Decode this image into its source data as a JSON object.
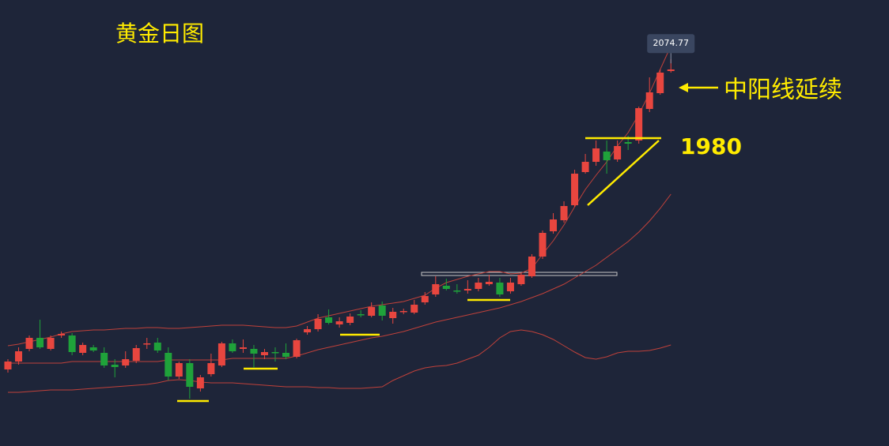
{
  "chart_data": {
    "type": "candlestick",
    "title": "黄金日图",
    "ylim": [
      1590,
      2155
    ],
    "up_color": "#e8463f",
    "down_color": "#1fa23a",
    "open": [
      1687,
      1697,
      1713,
      1727,
      1713,
      1730,
      1730,
      1708,
      1715,
      1708,
      1693,
      1692,
      1698,
      1719,
      1721,
      1708,
      1678,
      1695,
      1663,
      1681,
      1692,
      1720,
      1713,
      1713,
      1705,
      1709,
      1708,
      1703,
      1734,
      1738,
      1753,
      1744,
      1746,
      1757,
      1755,
      1768,
      1752,
      1760,
      1759,
      1772,
      1782,
      1793,
      1787,
      1787,
      1789,
      1795,
      1797,
      1786,
      1795,
      1805,
      1830,
      1862,
      1876,
      1895,
      1937,
      1950,
      1963,
      1953,
      1975,
      1977,
      2017,
      2037,
      2065
    ],
    "high": [
      1700,
      1715,
      1730,
      1750,
      1730,
      1735,
      1733,
      1721,
      1718,
      1715,
      1700,
      1710,
      1718,
      1727,
      1727,
      1715,
      1697,
      1700,
      1680,
      1707,
      1722,
      1725,
      1725,
      1718,
      1713,
      1715,
      1720,
      1726,
      1742,
      1757,
      1763,
      1753,
      1758,
      1762,
      1772,
      1773,
      1765,
      1764,
      1775,
      1785,
      1805,
      1802,
      1795,
      1800,
      1803,
      1807,
      1803,
      1803,
      1809,
      1833,
      1863,
      1885,
      1900,
      1940,
      1960,
      1977,
      1977,
      1977,
      1983,
      2020,
      2057,
      2067,
      2080
    ],
    "low": [
      1683,
      1693,
      1710,
      1713,
      1711,
      1727,
      1705,
      1705,
      1709,
      1689,
      1677,
      1689,
      1695,
      1713,
      1708,
      1673,
      1675,
      1650,
      1659,
      1678,
      1690,
      1708,
      1708,
      1689,
      1700,
      1697,
      1700,
      1701,
      1731,
      1735,
      1744,
      1740,
      1743,
      1753,
      1753,
      1749,
      1745,
      1757,
      1757,
      1769,
      1779,
      1787,
      1783,
      1783,
      1786,
      1793,
      1779,
      1783,
      1793,
      1803,
      1827,
      1859,
      1873,
      1893,
      1935,
      1945,
      1935,
      1950,
      1965,
      1973,
      2013,
      2035,
      2063
    ],
    "close": [
      1697,
      1710,
      1727,
      1715,
      1727,
      1732,
      1709,
      1718,
      1711,
      1692,
      1690,
      1700,
      1714,
      1720,
      1711,
      1678,
      1695,
      1665,
      1677,
      1695,
      1720,
      1710,
      1715,
      1707,
      1709,
      1708,
      1703,
      1724,
      1738,
      1751,
      1746,
      1748,
      1754,
      1756,
      1766,
      1755,
      1760,
      1761,
      1769,
      1780,
      1795,
      1789,
      1786,
      1789,
      1797,
      1798,
      1782,
      1797,
      1807,
      1830,
      1860,
      1877,
      1894,
      1935,
      1950,
      1967,
      1952,
      1970,
      1973,
      2018,
      2038,
      2063,
      2067
    ],
    "lines": [
      {
        "color": "#c0413a",
        "values": [
          1717,
          1719,
          1722,
          1725,
          1728,
          1732,
          1735,
          1736,
          1737,
          1737,
          1738,
          1739,
          1739,
          1740,
          1740,
          1739,
          1739,
          1740,
          1741,
          1742,
          1743,
          1743,
          1743,
          1742,
          1741,
          1740,
          1740,
          1742,
          1747,
          1752,
          1755,
          1758,
          1761,
          1764,
          1767,
          1769,
          1771,
          1773,
          1777,
          1781,
          1790,
          1797,
          1801,
          1805,
          1808,
          1811,
          1811,
          1808,
          1809,
          1815,
          1833,
          1850,
          1870,
          1893,
          1915,
          1933,
          1950,
          1970,
          1987,
          2010,
          2037,
          2067,
          2097
        ]
      },
      {
        "color": "#c0413a",
        "values": [
          1695,
          1695,
          1695,
          1695,
          1695,
          1695,
          1697,
          1697,
          1697,
          1697,
          1697,
          1697,
          1697,
          1697,
          1697,
          1699,
          1699,
          1699,
          1699,
          1699,
          1699,
          1701,
          1701,
          1701,
          1701,
          1701,
          1701,
          1704,
          1708,
          1712,
          1715,
          1718,
          1721,
          1724,
          1727,
          1729,
          1732,
          1735,
          1739,
          1743,
          1747,
          1750,
          1753,
          1756,
          1759,
          1762,
          1765,
          1769,
          1773,
          1778,
          1783,
          1789,
          1795,
          1803,
          1811,
          1819,
          1829,
          1839,
          1849,
          1861,
          1875,
          1891,
          1909
        ]
      },
      {
        "color": "#c0413a",
        "values": [
          1658,
          1658,
          1659,
          1660,
          1661,
          1661,
          1661,
          1662,
          1663,
          1664,
          1665,
          1666,
          1667,
          1668,
          1670,
          1673,
          1674,
          1673,
          1671,
          1670,
          1670,
          1670,
          1669,
          1668,
          1667,
          1666,
          1665,
          1665,
          1665,
          1664,
          1664,
          1663,
          1663,
          1663,
          1664,
          1665,
          1673,
          1679,
          1685,
          1689,
          1691,
          1692,
          1695,
          1700,
          1705,
          1715,
          1727,
          1735,
          1737,
          1735,
          1731,
          1725,
          1717,
          1709,
          1702,
          1700,
          1703,
          1708,
          1710,
          1710,
          1711,
          1714,
          1718
        ]
      }
    ],
    "last_price": 2074.77,
    "annotations": [
      {
        "text": "中阳线延续"
      },
      {
        "text": "1980",
        "value": 1980
      }
    ]
  }
}
